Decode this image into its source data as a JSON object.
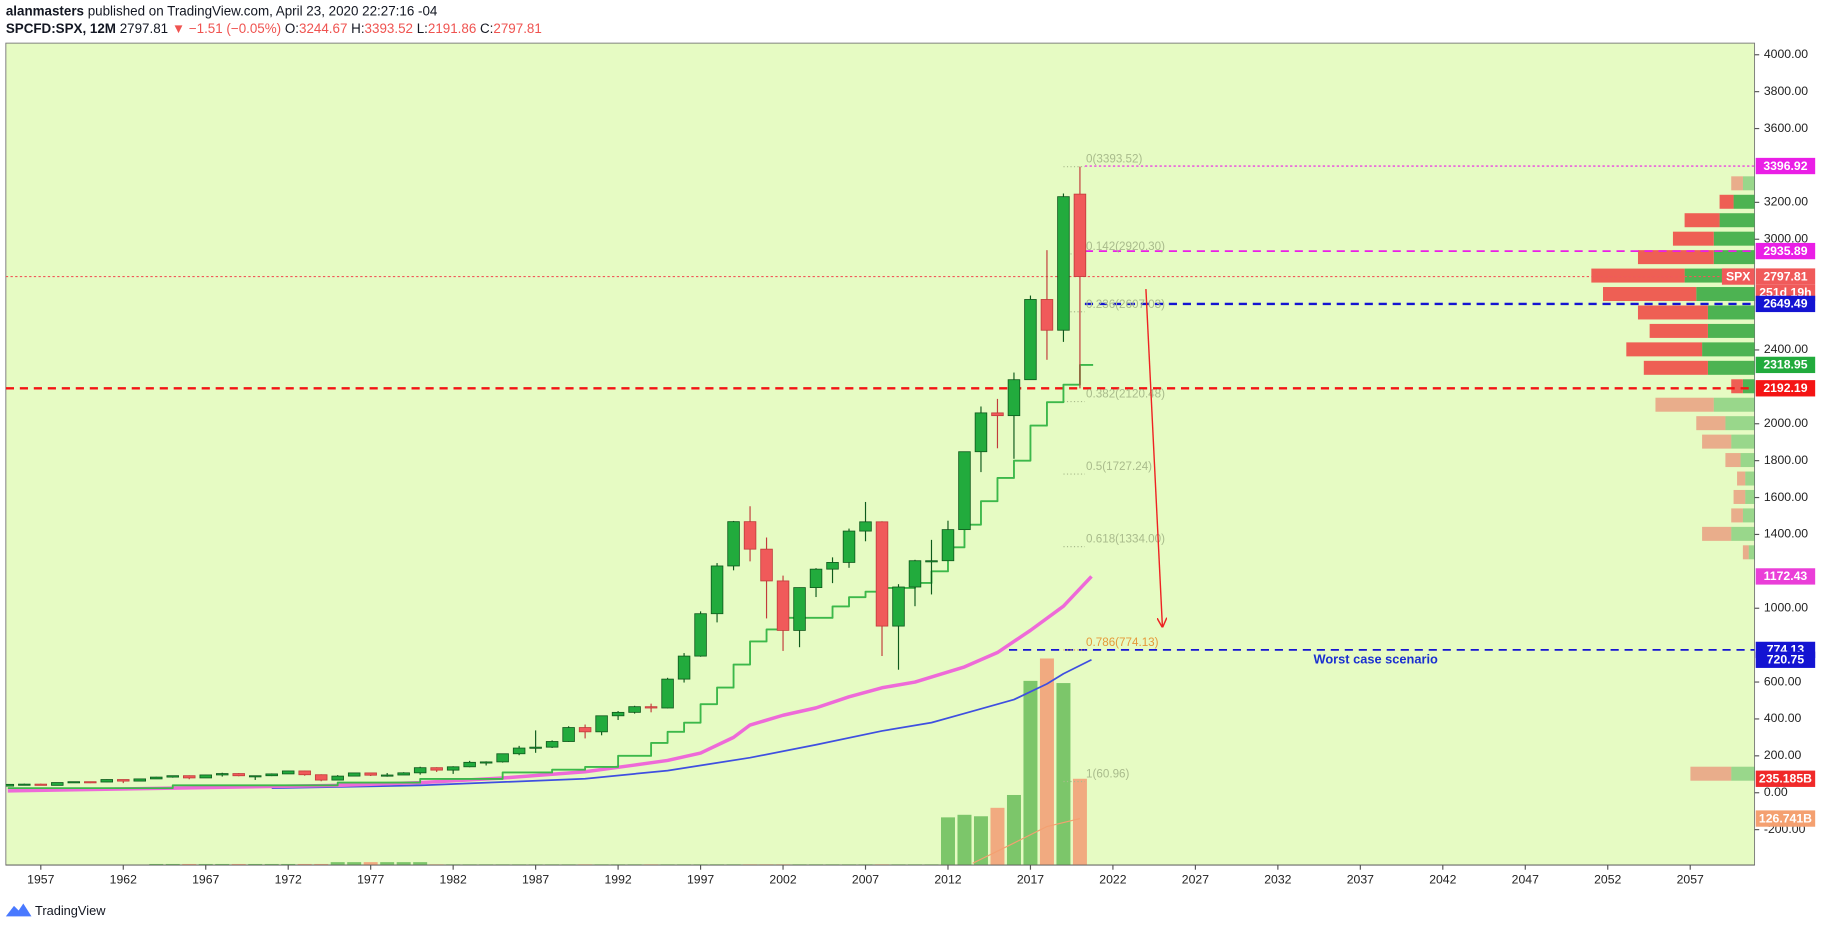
{
  "header": {
    "author": "alanmasters",
    "published": " published on TradingView.com, April 23, 2020 22:27:16 -04",
    "symbol": "SPCFD:SPX, 12M",
    "price": "2797.81",
    "change": "▼ −1.51 (−0.05%)",
    "ohlc": [
      [
        "O:",
        "3244.67"
      ],
      [
        "H:",
        "3393.52"
      ],
      [
        "L:",
        "2191.86"
      ],
      [
        "C:",
        "2797.81"
      ]
    ]
  },
  "footer": {
    "brand": "TradingView"
  },
  "chart_data": {
    "type": "candlestick",
    "xlim": [
      1954.88,
      2060.9
    ],
    "ylim": [
      -392,
      4063
    ],
    "vlim": [
      0,
      2240
    ],
    "xticks": [
      1957,
      1962,
      1967,
      1972,
      1977,
      1982,
      1987,
      1992,
      1997,
      2002,
      2007,
      2012,
      2017,
      2022,
      2027,
      2032,
      2037,
      2042,
      2047,
      2052,
      2057
    ],
    "yticks": [
      {
        "value": 4000,
        "label": "4000.00"
      },
      {
        "value": 3800,
        "label": "3800.00"
      },
      {
        "value": 3600,
        "label": "3600.00"
      },
      {
        "value": 3200,
        "label": "3200.00"
      },
      {
        "value": 3000,
        "label": "3000.00"
      },
      {
        "value": 2400,
        "label": "2400.00"
      },
      {
        "value": 2000,
        "label": "2000.00"
      },
      {
        "value": 1800,
        "label": "1800.00"
      },
      {
        "value": 1600,
        "label": "1600.00"
      },
      {
        "value": 1400,
        "label": "1400.00"
      },
      {
        "value": 1000,
        "label": "1000.00"
      },
      {
        "value": 600,
        "label": "600.00"
      },
      {
        "value": 400,
        "label": "400.00"
      },
      {
        "value": 200,
        "label": "200.00"
      },
      {
        "value": 0,
        "label": "0.00"
      },
      {
        "value": -200,
        "label": "-200.00"
      }
    ],
    "up_color": "#22ab3d",
    "down_color": "#f05a5a",
    "x": [
      1955,
      1956,
      1957,
      1958,
      1959,
      1960,
      1961,
      1962,
      1963,
      1964,
      1965,
      1966,
      1967,
      1968,
      1969,
      1970,
      1971,
      1972,
      1973,
      1974,
      1975,
      1976,
      1977,
      1978,
      1979,
      1980,
      1981,
      1982,
      1983,
      1984,
      1985,
      1986,
      1987,
      1988,
      1989,
      1990,
      1991,
      1992,
      1993,
      1994,
      1995,
      1996,
      1997,
      1998,
      1999,
      2000,
      2001,
      2002,
      2003,
      2004,
      2005,
      2006,
      2007,
      2008,
      2009,
      2010,
      2011,
      2012,
      2013,
      2014,
      2015,
      2016,
      2017,
      2018,
      2019,
      2020
    ],
    "open": [
      36.0,
      45.5,
      46.7,
      40.0,
      55.2,
      59.9,
      58.1,
      71.6,
      63.1,
      75.0,
      84.8,
      92.4,
      80.3,
      96.5,
      103.9,
      92.1,
      92.2,
      102.1,
      118.1,
      97.6,
      68.6,
      90.2,
      107.5,
      95.1,
      96.1,
      107.9,
      135.8,
      122.6,
      140.6,
      164.9,
      167.2,
      211.3,
      242.2,
      247.1,
      277.7,
      353.4,
      330.2,
      417.1,
      435.7,
      466.5,
      459.3,
      615.9,
      740.7,
      970.4,
      1229.2,
      1469.3,
      1320.3,
      1148.1,
      879.8,
      1111.9,
      1211.9,
      1248.3,
      1418.3,
      1468.4,
      903.3,
      1115.1,
      1257.6,
      1257.6,
      1426.2,
      1848.4,
      2058.9,
      2043.9,
      2238.8,
      2673.6,
      2506.9,
      3244.67
    ],
    "high": [
      46.4,
      49.7,
      49.1,
      55.2,
      60.7,
      60.4,
      72.6,
      71.6,
      75.0,
      86.3,
      92.6,
      94.1,
      97.6,
      108.4,
      106.2,
      93.5,
      104.8,
      119.1,
      120.2,
      99.8,
      95.6,
      107.8,
      107.5,
      106.9,
      111.3,
      141.0,
      138.1,
      143.7,
      172.7,
      170.4,
      212.0,
      254.0,
      337.9,
      283.7,
      360.4,
      369.8,
      418.3,
      442.7,
      471.3,
      482.9,
      622.9,
      757.0,
      983.1,
      1244.9,
      1473.1,
      1552.9,
      1383.4,
      1176.9,
      1112.6,
      1217.3,
      1275.8,
      1431.8,
      1576.1,
      1471.8,
      1130.4,
      1262.6,
      1370.6,
      1474.5,
      1849.4,
      2093.6,
      2134.7,
      2277.5,
      2694.9,
      2940.9,
      3247.9,
      3393.52
    ],
    "low": [
      34.6,
      43.1,
      39.0,
      40.0,
      53.6,
      52.3,
      57.6,
      52.3,
      62.7,
      75.0,
      81.6,
      73.2,
      80.3,
      87.7,
      89.2,
      69.3,
      90.2,
      101.7,
      92.2,
      62.3,
      68.6,
      90.2,
      90.7,
      86.9,
      96.1,
      98.2,
      112.8,
      102.2,
      138.3,
      147.8,
      163.4,
      203.5,
      216.5,
      242.6,
      275.3,
      294.5,
      311.4,
      394.5,
      429.0,
      435.9,
      457.2,
      597.3,
      737.0,
      923.3,
      1205.5,
      1254.1,
      944.8,
      768.6,
      788.9,
      1060.7,
      1136.2,
      1219.3,
      1363.0,
      741.0,
      666.8,
      1011.0,
      1074.8,
      1257.6,
      1426.2,
      1737.9,
      1867.0,
      1810.1,
      2238.8,
      2346.6,
      2443.9,
      2191.86
    ],
    "close": [
      45.5,
      46.7,
      40.0,
      55.2,
      59.9,
      58.1,
      71.6,
      63.1,
      75.0,
      84.8,
      92.4,
      80.3,
      96.5,
      103.9,
      92.1,
      92.2,
      102.1,
      118.1,
      97.6,
      68.6,
      90.2,
      107.5,
      95.1,
      96.1,
      107.9,
      135.8,
      122.6,
      140.6,
      164.9,
      167.2,
      211.3,
      242.2,
      247.1,
      277.7,
      353.4,
      330.2,
      417.1,
      435.7,
      466.5,
      459.3,
      615.9,
      740.7,
      970.4,
      1229.2,
      1469.3,
      1320.3,
      1148.1,
      879.8,
      1111.9,
      1211.9,
      1248.3,
      1418.3,
      1468.4,
      903.3,
      1115.1,
      1257.6,
      1257.6,
      1426.2,
      1848.4,
      2058.9,
      2043.9,
      2238.8,
      2673.6,
      2506.9,
      3230.8,
      2797.81
    ],
    "volume": {
      "up_color": "#7cc66a",
      "down_color": "#f1aa80",
      "values": [
        null,
        null,
        null,
        null,
        null,
        null,
        null,
        null,
        null,
        3,
        3,
        3,
        3,
        3,
        3,
        3,
        3,
        3,
        3,
        3,
        8,
        8,
        8,
        8,
        8,
        8,
        2,
        2,
        2,
        2,
        2,
        2,
        2,
        2,
        2,
        2,
        2,
        2,
        2,
        2,
        2,
        2,
        2,
        2,
        2,
        2,
        2,
        2,
        2,
        2,
        2,
        2,
        2,
        2,
        2,
        2,
        2,
        130,
        137,
        133,
        156,
        191,
        502,
        563,
        496,
        235.185
      ]
    },
    "overlays": [
      {
        "color": "#3f4fe0",
        "width": 1.5,
        "step": false,
        "axis": "y",
        "x": [
          1971,
          1980,
          1990,
          1995,
          2000,
          2004,
          2008,
          2011,
          2013,
          2016,
          2018,
          2019,
          2020.7
        ],
        "values": [
          25,
          40,
          76,
          120,
          190,
          260,
          335,
          380,
          430,
          505,
          590,
          645,
          720.75
        ]
      },
      {
        "color": "#ee6ad8",
        "width": 3,
        "step": false,
        "axis": "y",
        "x": [
          1955,
          1965,
          1975,
          1980,
          1985,
          1990,
          1993,
          1995,
          1997,
          1999,
          2000,
          2002,
          2004,
          2006,
          2008,
          2010,
          2013,
          2015,
          2017,
          2019,
          2020.7
        ],
        "values": [
          10,
          25,
          40,
          55,
          80,
          114,
          150,
          175,
          215,
          300,
          367,
          420,
          460,
          520,
          569,
          600,
          682,
          760,
          880,
          1011,
          1172.43
        ]
      },
      {
        "color": "#3cb84a",
        "width": 1.6,
        "step": true,
        "axis": "y",
        "x": [
          1955,
          1965,
          1975,
          1980,
          1985,
          1988,
          1990,
          1992,
          1994,
          1995,
          1996,
          1997,
          1998,
          1999,
          2000,
          2001,
          2002,
          2003,
          2004,
          2005,
          2006,
          2007,
          2008,
          2009,
          2010,
          2011,
          2012,
          2013,
          2014,
          2015,
          2016,
          2017,
          2018,
          2019,
          2020,
          2020.8
        ],
        "values": [
          25,
          40,
          55,
          75,
          110,
          125,
          140,
          200,
          270,
          330,
          380,
          480,
          570,
          695,
          820,
          885,
          948,
          948,
          948,
          1010,
          1060,
          1090,
          1110,
          1110,
          1137,
          1200,
          1330,
          1453,
          1580,
          1706,
          1800,
          1990,
          2117,
          2212,
          2318.95,
          2318.95
        ]
      },
      {
        "color": "#f4a070",
        "width": 1,
        "step": false,
        "axis": "volume",
        "x": [
          2013.5,
          2016,
          2018,
          2020
        ],
        "values": [
          5,
          60,
          105,
          126.741
        ]
      }
    ],
    "fib": {
      "x": [
        2019,
        2020.3
      ],
      "color": "#a9bb8c",
      "levels": [
        {
          "value": 3393.52,
          "label": "0(3393.52)"
        },
        {
          "value": 2920.3,
          "label": "0.142(2920.30)"
        },
        {
          "value": 2607.03,
          "label": "0.236(2607.03)"
        },
        {
          "value": 2120.48,
          "label": "0.382(2120.48)"
        },
        {
          "value": 1727.24,
          "label": "0.5(1727.24)"
        },
        {
          "value": 1334.0,
          "label": "0.618(1334.00)"
        },
        {
          "value": 774.13,
          "label": "0.786(774.13)",
          "color": "#e59a3a"
        },
        {
          "value": 60.96,
          "label": "1(60.96)"
        }
      ]
    },
    "profile": {
      "up_color": "#3cab46",
      "down_color": "#ee4e48",
      "value_area": [
        2150,
        3250
      ],
      "rows": [
        {
          "price": 3300,
          "up": 10,
          "down": 10
        },
        {
          "price": 3200,
          "up": 18,
          "down": 12
        },
        {
          "price": 3100,
          "up": 30,
          "down": 30
        },
        {
          "price": 3000,
          "up": 35,
          "down": 35
        },
        {
          "price": 2900,
          "up": 35,
          "down": 65
        },
        {
          "price": 2800,
          "up": 60,
          "down": 80
        },
        {
          "price": 2700,
          "up": 50,
          "down": 80
        },
        {
          "price": 2600,
          "up": 40,
          "down": 60
        },
        {
          "price": 2500,
          "up": 40,
          "down": 50
        },
        {
          "price": 2400,
          "up": 45,
          "down": 65
        },
        {
          "price": 2300,
          "up": 40,
          "down": 55
        },
        {
          "price": 2200,
          "up": 10,
          "down": 10
        },
        {
          "price": 2100,
          "up": 35,
          "down": 50
        },
        {
          "price": 2000,
          "up": 25,
          "down": 25
        },
        {
          "price": 1900,
          "up": 20,
          "down": 25
        },
        {
          "price": 1800,
          "up": 12,
          "down": 13
        },
        {
          "price": 1700,
          "up": 8,
          "down": 7
        },
        {
          "price": 1600,
          "up": 8,
          "down": 10
        },
        {
          "price": 1500,
          "up": 10,
          "down": 10
        },
        {
          "price": 1400,
          "up": 20,
          "down": 25
        },
        {
          "price": 1300,
          "up": 5,
          "down": 5
        },
        {
          "price": 100,
          "up": 20,
          "down": 35
        }
      ]
    },
    "price_labels": [
      {
        "value": 3396.92,
        "label": "3396.92",
        "color": "#ea1ee6",
        "line": {
          "style": "dot",
          "from": 2020.3,
          "width": 1
        }
      },
      {
        "value": 2935.89,
        "label": "2935.89",
        "color": "#ea1ee6",
        "line": {
          "style": "dash",
          "from": 2020.3,
          "width": 1.5
        }
      },
      {
        "value": 2797.81,
        "label": "2797.81",
        "color": "#f05a5a",
        "tag": "SPX",
        "countdown": "251d 19h",
        "line": {
          "style": "dot",
          "from": 1954.88,
          "width": 1
        }
      },
      {
        "value": 2649.49,
        "label": "2649.49",
        "color": "#1414d2",
        "line": {
          "style": "dash",
          "from": 2020.3,
          "width": 2
        }
      },
      {
        "value": 2318.95,
        "label": "2318.95",
        "color": "#22ab3d"
      },
      {
        "value": 2192.19,
        "label": "2192.19",
        "color": "#f41414",
        "line": {
          "style": "dash",
          "from": 1954.88,
          "width": 2
        }
      },
      {
        "value": 1172.43,
        "label": "1172.43",
        "color": "#ea3ed8"
      },
      {
        "value": 774.13,
        "label": "774.13",
        "color": "#1414d2",
        "line": {
          "style": "dash",
          "from": 2015.7,
          "width": 1.5
        }
      },
      {
        "value": 720.75,
        "label": "720.75",
        "color": "#1414d2"
      },
      {
        "value": 235.185,
        "label": "235.185B",
        "color": "#f02a2a",
        "axis": "volume"
      },
      {
        "value": 126.741,
        "label": "126.741B",
        "color": "#f4a070",
        "axis": "volume",
        "dark": true
      }
    ],
    "arrow": {
      "from": [
        2024,
        2730
      ],
      "to": [
        2025,
        900
      ],
      "color": "#ee2222"
    },
    "annotation": "Worst case scenario",
    "annotation_color": "#1a2fd0"
  }
}
